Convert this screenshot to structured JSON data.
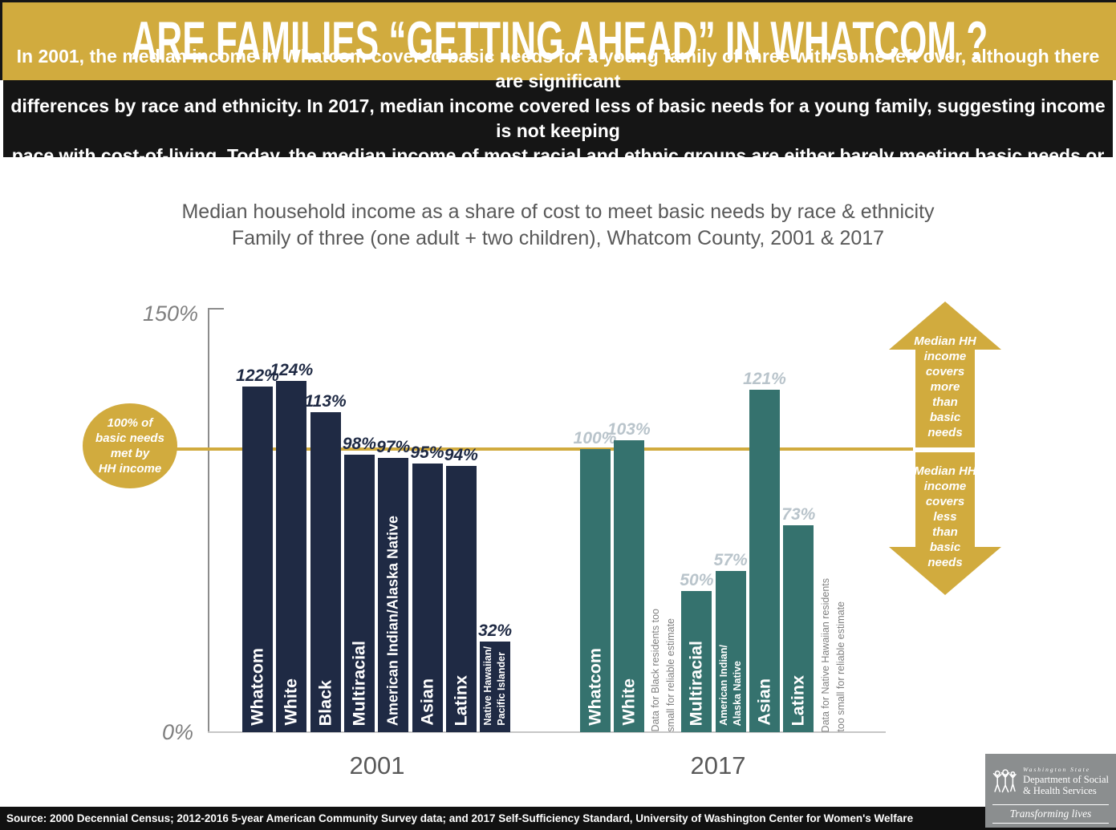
{
  "colors": {
    "gold": "#d1ab3e",
    "navy": "#1f2a44",
    "teal": "#35726e",
    "title_gray": "#595959",
    "note_gray": "#7f7f7f",
    "light_value_label": "#b9c4cb"
  },
  "header": {
    "title": "ARE FAMILIES “GETTING AHEAD” IN WHATCOM ?"
  },
  "banner": {
    "lines": [
      "In 2001, the median income in Whatcom covered basic needs for a young family of three with some left over, although there are significant",
      "differences by race and ethnicity. In 2017, median income covered less of basic needs for a young family, suggesting income is not keeping",
      "pace with cost-of-living. Today, the median income of most racial and ethnic groups are either barely meeting basic needs or falling far short."
    ]
  },
  "chart_data": {
    "type": "bar",
    "title": "Median household income as a share of cost to meet basic needs by race & ethnicity",
    "subtitle": "Family of three (one adult + two children), Whatcom County, 2001 & 2017",
    "ylim": [
      0,
      150
    ],
    "ytick_top": "150%",
    "ytick_bottom": "0%",
    "grid": false,
    "reference_line": {
      "value": 100,
      "label_lines": [
        "100% of",
        "basic needs",
        "met by",
        "HH income"
      ]
    },
    "groups": [
      {
        "year": "2001",
        "bar_color": "#1f2a44",
        "value_label_color": "#1f2a44",
        "slots": [
          {
            "label": "Whatcom",
            "value": 122,
            "display": "122%"
          },
          {
            "label": "White",
            "value": 124,
            "display": "124%"
          },
          {
            "label": "Black",
            "value": 113,
            "display": "113%"
          },
          {
            "label": "Multiracial",
            "value": 98,
            "display": "98%"
          },
          {
            "label": "American Indian/Alaska Native",
            "value": 97,
            "display": "97%"
          },
          {
            "label": "Asian",
            "value": 95,
            "display": "95%"
          },
          {
            "label": "Latinx",
            "value": 94,
            "display": "94%"
          },
          {
            "label": "Native Hawaiian/Pacific Islander",
            "label_lines": [
              "Native Hawaiian/",
              "Pacific Islander"
            ],
            "value": 32,
            "display": "32%"
          }
        ]
      },
      {
        "year": "2017",
        "bar_color": "#35726e",
        "value_label_color": "#b9c4cb",
        "slots": [
          {
            "label": "Whatcom",
            "value": 100,
            "display": "100%"
          },
          {
            "label": "White",
            "value": 103,
            "display": "103%"
          },
          {
            "note_lines": [
              "Data for Black residents too",
              "small for reliable estimate"
            ]
          },
          {
            "label": "Multiracial",
            "value": 50,
            "display": "50%"
          },
          {
            "label": "American Indian/Alaska Native",
            "label_lines": [
              "American Indian/",
              "Alaska Native"
            ],
            "value": 57,
            "display": "57%"
          },
          {
            "label": "Asian",
            "value": 121,
            "display": "121%"
          },
          {
            "label": "Latinx",
            "value": 73,
            "display": "73%"
          },
          {
            "note_lines": [
              "Data for Native Hawaiian residents",
              "too small for reliable estimate"
            ]
          }
        ]
      }
    ]
  },
  "annotations": {
    "up_arrow_lines": [
      "Median HH",
      "income",
      "covers",
      "more",
      "than",
      "basic",
      "needs"
    ],
    "down_arrow_lines": [
      "Median HH",
      "income",
      "covers",
      "less",
      "than",
      "basic",
      "needs"
    ]
  },
  "footer": {
    "source": "Source: 2000 Decennial Census; 2012-2016 5-year American Community Survey data; and 2017 Self-Sufficiency Standard, University of Washington Center for Women's Welfare"
  },
  "logo": {
    "state": "Washington State",
    "dept_line1": "Department of Social",
    "dept_line2": "& Health Services",
    "tagline": "Transforming lives"
  }
}
